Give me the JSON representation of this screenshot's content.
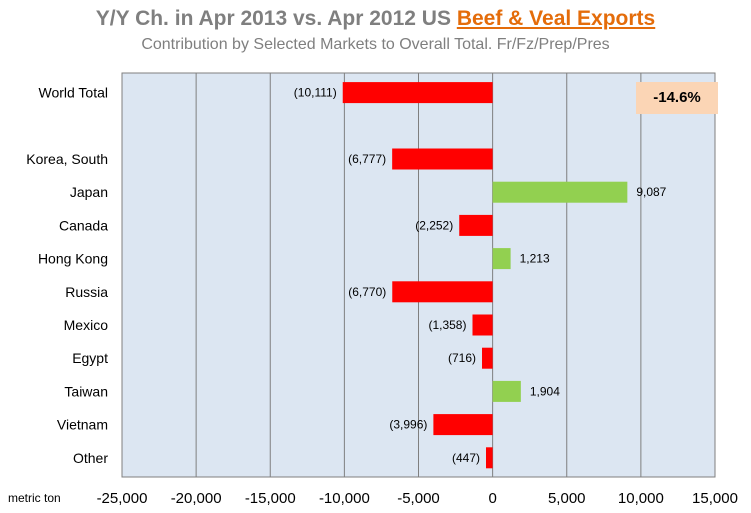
{
  "title": {
    "main_prefix": "Y/Y Ch.  in Apr 2013 vs. Apr 2012 US ",
    "main_highlight": "Beef & Veal Exports",
    "subtitle": "Contribution  by Selected Markets  to Overall Total.  Fr/Fz/Prep/Pres"
  },
  "callout": {
    "text": "-14.6%",
    "color": "#fbd5b5"
  },
  "colors": {
    "negative": "#ff0000",
    "positive": "#92d050",
    "plot_bg": "#dce6f2",
    "grid": "#7f7f7f"
  },
  "chart_data": {
    "type": "bar",
    "orientation": "horizontal",
    "categories": [
      "World Total",
      "",
      "Korea, South",
      "Japan",
      "Canada",
      "Hong Kong",
      "Russia",
      "Mexico",
      "Egypt",
      "Taiwan",
      "Vietnam",
      "Other"
    ],
    "values": [
      -10111,
      null,
      -6777,
      9087,
      -2252,
      1213,
      -6770,
      -1358,
      -716,
      1904,
      -3996,
      -447
    ],
    "data_labels": [
      "(10,111)",
      "",
      "(6,777)",
      "9,087",
      "(2,252)",
      "1,213",
      "(6,770)",
      "(1,358)",
      "(716)",
      "1,904",
      "(3,996)",
      "(447)"
    ],
    "xlabel": "metric ton",
    "xlim": [
      -25000,
      15000
    ],
    "xticks": [
      -25000,
      -20000,
      -15000,
      -10000,
      -5000,
      0,
      5000,
      10000,
      15000
    ],
    "xtick_labels": [
      "-25,000",
      "-20,000",
      "-15,000",
      "-10,000",
      "-5,000",
      "0",
      "5,000",
      "10,000",
      "15,000"
    ],
    "grid": true
  }
}
